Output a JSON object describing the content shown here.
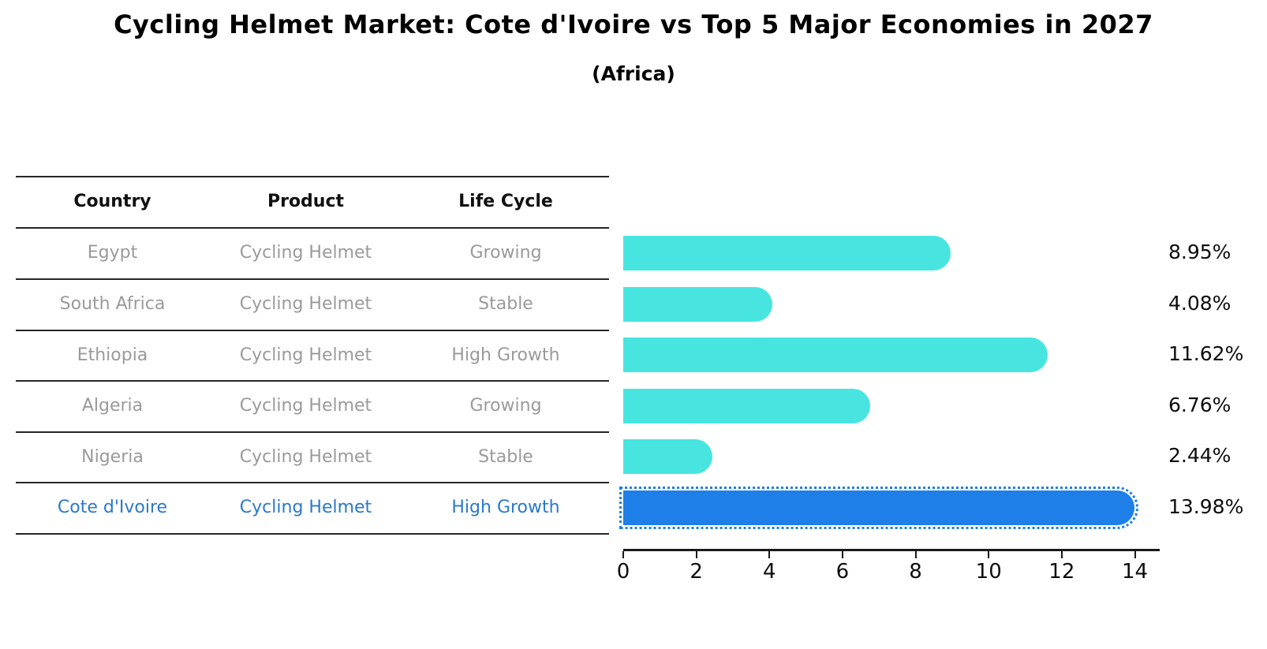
{
  "chart": {
    "title": "Cycling Helmet Market: Cote d'Ivoire vs Top 5 Major Economies in 2027",
    "subtitle": "(Africa)"
  },
  "table": {
    "headers": [
      "Country",
      "Product",
      "Life Cycle"
    ]
  },
  "rows": [
    {
      "country": "Egypt",
      "product": "Cycling Helmet",
      "life_cycle": "Growing",
      "value": 8.95,
      "label": "8.95%",
      "highlight": false
    },
    {
      "country": "South Africa",
      "product": "Cycling Helmet",
      "life_cycle": "Stable",
      "value": 4.08,
      "label": "4.08%",
      "highlight": false
    },
    {
      "country": "Ethiopia",
      "product": "Cycling Helmet",
      "life_cycle": "High Growth",
      "value": 11.62,
      "label": "11.62%",
      "highlight": false
    },
    {
      "country": "Algeria",
      "product": "Cycling Helmet",
      "life_cycle": "Growing",
      "value": 6.76,
      "label": "6.76%",
      "highlight": false
    },
    {
      "country": "Nigeria",
      "product": "Cycling Helmet",
      "life_cycle": "Stable",
      "value": 2.44,
      "label": "2.44%",
      "highlight": false
    },
    {
      "country": "Cote d'Ivoire",
      "product": "Cycling Helmet",
      "life_cycle": "High Growth",
      "value": 13.98,
      "label": "13.98%",
      "highlight": true
    }
  ],
  "chart_data": {
    "type": "bar",
    "orientation": "horizontal",
    "title": "Cycling Helmet Market: Cote d'Ivoire vs Top 5 Major Economies in 2027 (Africa)",
    "categories": [
      "Egypt",
      "South Africa",
      "Ethiopia",
      "Algeria",
      "Nigeria",
      "Cote d'Ivoire"
    ],
    "values": [
      8.95,
      4.08,
      11.62,
      6.76,
      2.44,
      13.98
    ],
    "data_labels": [
      "8.95%",
      "4.08%",
      "11.62%",
      "6.76%",
      "2.44%",
      "13.98%"
    ],
    "xlabel": "",
    "ylabel": "",
    "xlim": [
      0,
      14.68
    ],
    "x_ticks": [
      0,
      2,
      4,
      6,
      8,
      10,
      12,
      14
    ],
    "grid": false,
    "legend": false,
    "highlight_index": 5,
    "bar_color": "#48E5E0",
    "highlight_color": "#1E7FE8",
    "highlight_text_color": "#2979CC"
  }
}
